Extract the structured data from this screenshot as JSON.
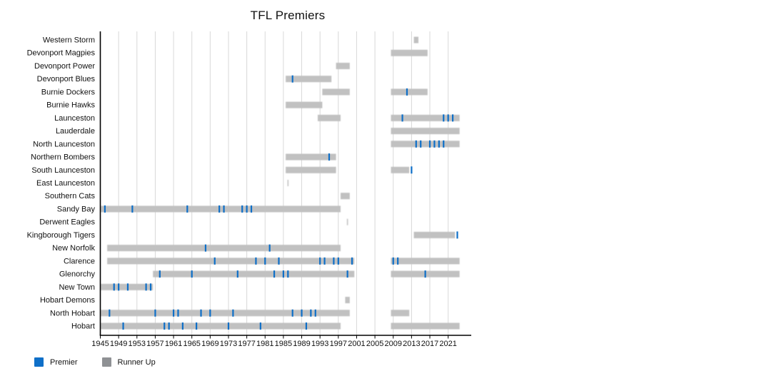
{
  "title": "TFL Premiers",
  "legend": [
    {
      "label": "Premier",
      "color": "#0e6fc8"
    },
    {
      "label": "Runner Up",
      "color": "#8f9194"
    }
  ],
  "colors": {
    "premier": "#0e6fc8",
    "runner_up_band": "#c1c1c1",
    "gridline": "#d8d8d8",
    "axis": "#000000",
    "text": "#111111"
  },
  "chart_data": {
    "type": "timeline",
    "title": "TFL Premiers",
    "x_axis": {
      "min": 1945,
      "max": 2024,
      "tick_years": [
        1945,
        1949,
        1953,
        1957,
        1961,
        1965,
        1969,
        1973,
        1977,
        1981,
        1985,
        1989,
        1993,
        1997,
        2001,
        2005,
        2009,
        2013,
        2017,
        2021
      ]
    },
    "legend_position": "bottom-left",
    "grid": true,
    "teams": [
      {
        "name": "Western Storm",
        "premier_years": [],
        "runner_up_spans": [
          [
            2014,
            2014
          ]
        ],
        "thin_marks": []
      },
      {
        "name": "Devonport Magpies",
        "premier_years": [],
        "runner_up_spans": [
          [
            2009,
            2016
          ]
        ],
        "thin_marks": []
      },
      {
        "name": "Devonport Power",
        "premier_years": [],
        "runner_up_spans": [
          [
            1997,
            1999
          ]
        ],
        "thin_marks": []
      },
      {
        "name": "Devonport Blues",
        "premier_years": [
          1987
        ],
        "runner_up_spans": [
          [
            1986,
            1995
          ]
        ],
        "thin_marks": []
      },
      {
        "name": "Burnie Dockers",
        "premier_years": [
          2012
        ],
        "runner_up_spans": [
          [
            1994,
            1999
          ],
          [
            2009,
            2016
          ]
        ],
        "thin_marks": []
      },
      {
        "name": "Burnie Hawks",
        "premier_years": [],
        "runner_up_spans": [
          [
            1986,
            1993
          ]
        ],
        "thin_marks": []
      },
      {
        "name": "Launceston",
        "premier_years": [
          2011,
          2020,
          2021,
          2022
        ],
        "runner_up_spans": [
          [
            1993,
            1997
          ],
          [
            2009,
            2023
          ]
        ],
        "thin_marks": []
      },
      {
        "name": "Lauderdale",
        "premier_years": [],
        "runner_up_spans": [
          [
            2009,
            2023
          ]
        ],
        "thin_marks": []
      },
      {
        "name": "North Launceston",
        "premier_years": [
          2014,
          2015,
          2017,
          2018,
          2019,
          2020
        ],
        "runner_up_spans": [
          [
            2009,
            2023
          ]
        ],
        "thin_marks": []
      },
      {
        "name": "Northern Bombers",
        "premier_years": [
          1995
        ],
        "runner_up_spans": [
          [
            1986,
            1996
          ]
        ],
        "thin_marks": []
      },
      {
        "name": "South Launceston",
        "premier_years": [
          2013
        ],
        "runner_up_spans": [
          [
            1986,
            1996
          ],
          [
            2009,
            2012
          ]
        ],
        "thin_marks": []
      },
      {
        "name": "East Launceston",
        "premier_years": [],
        "runner_up_spans": [],
        "thin_marks": [
          1986
        ]
      },
      {
        "name": "Southern Cats",
        "premier_years": [],
        "runner_up_spans": [
          [
            1998,
            1999
          ]
        ],
        "thin_marks": []
      },
      {
        "name": "Sandy Bay",
        "premier_years": [
          1946,
          1952,
          1964,
          1971,
          1972,
          1976,
          1977,
          1978
        ],
        "runner_up_spans": [
          [
            1945,
            1997
          ]
        ],
        "thin_marks": []
      },
      {
        "name": "Derwent Eagles",
        "premier_years": [],
        "runner_up_spans": [],
        "thin_marks": [
          1999
        ]
      },
      {
        "name": "Kingborough Tigers",
        "premier_years": [
          2023
        ],
        "runner_up_spans": [
          [
            2014,
            2022
          ]
        ],
        "thin_marks": []
      },
      {
        "name": "New Norfolk",
        "premier_years": [
          1968,
          1982
        ],
        "runner_up_spans": [
          [
            1947,
            1997
          ]
        ],
        "thin_marks": []
      },
      {
        "name": "Clarence",
        "premier_years": [
          1970,
          1979,
          1981,
          1984,
          1993,
          1994,
          1996,
          1997,
          2000,
          2009,
          2010
        ],
        "runner_up_spans": [
          [
            1947,
            2000
          ],
          [
            2009,
            2023
          ]
        ],
        "thin_marks": []
      },
      {
        "name": "Glenorchy",
        "premier_years": [
          1958,
          1965,
          1975,
          1983,
          1985,
          1986,
          1999,
          2016
        ],
        "runner_up_spans": [
          [
            1957,
            2000
          ],
          [
            2009,
            2023
          ]
        ],
        "thin_marks": []
      },
      {
        "name": "New Town",
        "premier_years": [
          1948,
          1949,
          1951,
          1955,
          1956
        ],
        "runner_up_spans": [
          [
            1945,
            1956
          ]
        ],
        "thin_marks": []
      },
      {
        "name": "Hobart Demons",
        "premier_years": [],
        "runner_up_spans": [
          [
            1999,
            1999
          ]
        ],
        "thin_marks": []
      },
      {
        "name": "North Hobart",
        "premier_years": [
          1947,
          1957,
          1961,
          1962,
          1967,
          1969,
          1974,
          1987,
          1989,
          1991,
          1992
        ],
        "runner_up_spans": [
          [
            1945,
            1999
          ],
          [
            2009,
            2012
          ]
        ],
        "thin_marks": []
      },
      {
        "name": "Hobart",
        "premier_years": [
          1950,
          1959,
          1960,
          1963,
          1966,
          1973,
          1980,
          1990
        ],
        "runner_up_spans": [
          [
            1945,
            1997
          ],
          [
            2009,
            2023
          ]
        ],
        "thin_marks": []
      }
    ]
  }
}
